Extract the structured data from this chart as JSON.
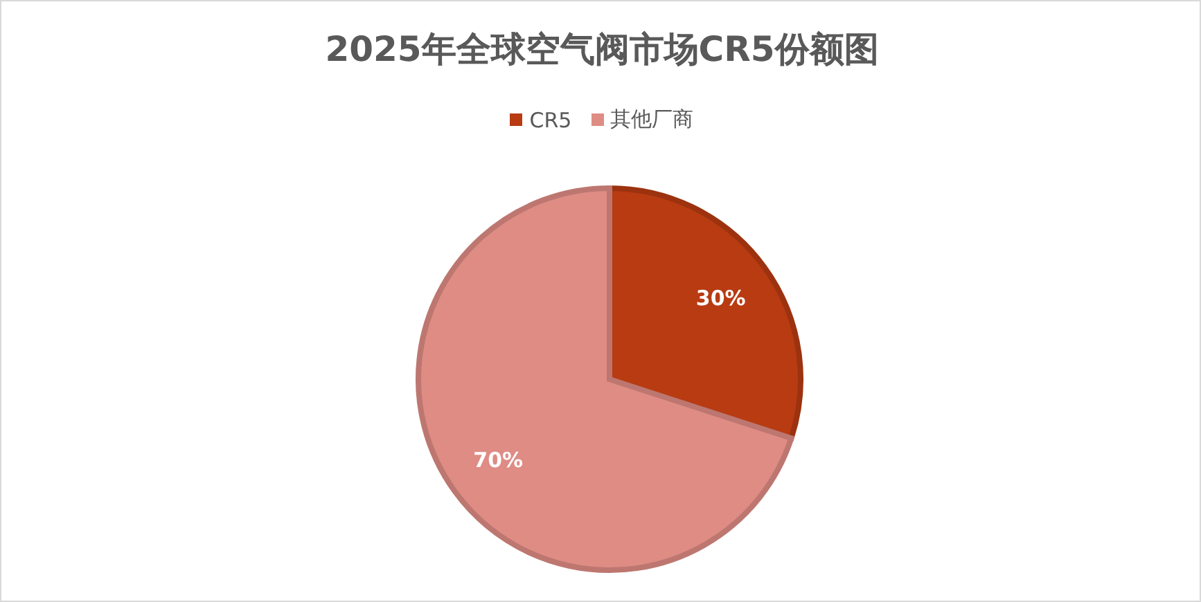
{
  "chart_data": {
    "type": "pie",
    "title": "2025年全球空气阀市场CR5份额图",
    "categories": [
      "CR5",
      "其他厂商"
    ],
    "values": [
      30,
      70
    ],
    "value_labels": [
      "30%",
      "70%"
    ],
    "colors": [
      "#b83b12",
      "#de8c84"
    ],
    "legend": "top"
  }
}
